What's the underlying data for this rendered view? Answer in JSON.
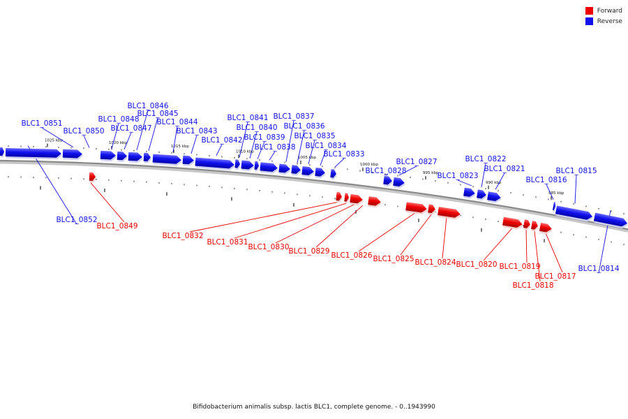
{
  "title": "Bifidobacterium animalis subsp. lactis BLC1, complete genome. - 0..1943990",
  "legend": [
    {
      "label": "Forward",
      "color": "#ee0000"
    },
    {
      "label": "Reverse",
      "color": "#1111ee"
    }
  ],
  "colors": {
    "forward": "#ee0000",
    "reverse": "#1111ee",
    "backbone": "#8a8a8a"
  },
  "scale_labels": [
    "1025 kbp",
    "1020 kbp",
    "1015 kbp",
    "1010 kbp",
    "1005 kbp",
    "1000 kbp",
    "995 kbp",
    "990 kbp",
    "985 kbp"
  ],
  "genes": [
    {
      "id": "BLC1_0852",
      "strand": "reverse"
    },
    {
      "id": "BLC1_0851",
      "strand": "reverse"
    },
    {
      "id": "BLC1_0850",
      "strand": "reverse"
    },
    {
      "id": "BLC1_0849",
      "strand": "forward"
    },
    {
      "id": "BLC1_0848",
      "strand": "reverse"
    },
    {
      "id": "BLC1_0847",
      "strand": "reverse"
    },
    {
      "id": "BLC1_0846",
      "strand": "reverse"
    },
    {
      "id": "BLC1_0845",
      "strand": "reverse"
    },
    {
      "id": "BLC1_0844",
      "strand": "reverse"
    },
    {
      "id": "BLC1_0843",
      "strand": "reverse"
    },
    {
      "id": "BLC1_0842",
      "strand": "reverse"
    },
    {
      "id": "BLC1_0841",
      "strand": "reverse"
    },
    {
      "id": "BLC1_0840",
      "strand": "reverse"
    },
    {
      "id": "BLC1_0839",
      "strand": "reverse"
    },
    {
      "id": "BLC1_0838",
      "strand": "reverse"
    },
    {
      "id": "BLC1_0837",
      "strand": "reverse"
    },
    {
      "id": "BLC1_0836",
      "strand": "reverse"
    },
    {
      "id": "BLC1_0835",
      "strand": "reverse"
    },
    {
      "id": "BLC1_0834",
      "strand": "reverse"
    },
    {
      "id": "BLC1_0833",
      "strand": "reverse"
    },
    {
      "id": "BLC1_0832",
      "strand": "forward"
    },
    {
      "id": "BLC1_0831",
      "strand": "forward"
    },
    {
      "id": "BLC1_0830",
      "strand": "forward"
    },
    {
      "id": "BLC1_0829",
      "strand": "forward"
    },
    {
      "id": "BLC1_0828",
      "strand": "reverse"
    },
    {
      "id": "BLC1_0827",
      "strand": "reverse"
    },
    {
      "id": "BLC1_0826",
      "strand": "forward"
    },
    {
      "id": "BLC1_0825",
      "strand": "forward"
    },
    {
      "id": "BLC1_0824",
      "strand": "forward"
    },
    {
      "id": "BLC1_0823",
      "strand": "reverse"
    },
    {
      "id": "BLC1_0822",
      "strand": "reverse"
    },
    {
      "id": "BLC1_0821",
      "strand": "reverse"
    },
    {
      "id": "BLC1_0820",
      "strand": "forward"
    },
    {
      "id": "BLC1_0819",
      "strand": "forward"
    },
    {
      "id": "BLC1_0818",
      "strand": "forward"
    },
    {
      "id": "BLC1_0817",
      "strand": "forward"
    },
    {
      "id": "BLC1_0816",
      "strand": "reverse"
    },
    {
      "id": "BLC1_0815",
      "strand": "reverse"
    },
    {
      "id": "BLC1_0814",
      "strand": "reverse"
    }
  ]
}
